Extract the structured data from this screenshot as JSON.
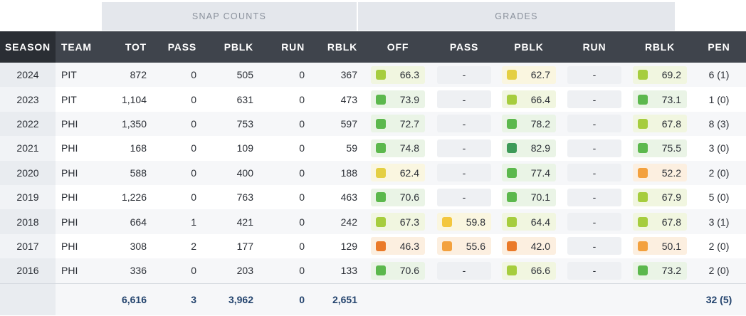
{
  "group_headers": {
    "snap_counts": "SNAP COUNTS",
    "grades": "GRADES"
  },
  "columns": {
    "season": "SEASON",
    "team": "TEAM",
    "tot": "TOT",
    "pass": "PASS",
    "pblk": "PBLK",
    "run": "RUN",
    "rblk": "RBLK",
    "off": "OFF",
    "g_pass": "PASS",
    "g_pblk": "PBLK",
    "g_run": "RUN",
    "g_rblk": "RBLK",
    "pen": "PEN"
  },
  "colors": {
    "dark_green": "#3d9a58",
    "green": "#5cb84d",
    "light_green": "#a6cd3e",
    "yellow": "#e4cf43",
    "gold": "#f3c73f",
    "orange": "#f3a13e",
    "dark_orange": "#ea7a29",
    "tint_green": "#eaf4e6",
    "tint_light_green": "#f1f6e0",
    "tint_yellow": "#faf6e0",
    "tint_orange": "#fcefe0"
  },
  "rows": [
    {
      "season": "2024",
      "team": "PIT",
      "tot": "872",
      "pass": "0",
      "pblk": "505",
      "run": "0",
      "rblk": "367",
      "off": {
        "value": "66.3",
        "color": "light_green"
      },
      "g_pass": null,
      "g_pblk": {
        "value": "62.7",
        "color": "yellow"
      },
      "g_run": null,
      "g_rblk": {
        "value": "69.2",
        "color": "light_green"
      },
      "pen": "6 (1)"
    },
    {
      "season": "2023",
      "team": "PIT",
      "tot": "1,104",
      "pass": "0",
      "pblk": "631",
      "run": "0",
      "rblk": "473",
      "off": {
        "value": "73.9",
        "color": "green"
      },
      "g_pass": null,
      "g_pblk": {
        "value": "66.4",
        "color": "light_green"
      },
      "g_run": null,
      "g_rblk": {
        "value": "73.1",
        "color": "green"
      },
      "pen": "1 (0)"
    },
    {
      "season": "2022",
      "team": "PHI",
      "tot": "1,350",
      "pass": "0",
      "pblk": "753",
      "run": "0",
      "rblk": "597",
      "off": {
        "value": "72.7",
        "color": "green"
      },
      "g_pass": null,
      "g_pblk": {
        "value": "78.2",
        "color": "green"
      },
      "g_run": null,
      "g_rblk": {
        "value": "67.8",
        "color": "light_green"
      },
      "pen": "8 (3)"
    },
    {
      "season": "2021",
      "team": "PHI",
      "tot": "168",
      "pass": "0",
      "pblk": "109",
      "run": "0",
      "rblk": "59",
      "off": {
        "value": "74.8",
        "color": "green"
      },
      "g_pass": null,
      "g_pblk": {
        "value": "82.9",
        "color": "dark_green"
      },
      "g_run": null,
      "g_rblk": {
        "value": "75.5",
        "color": "green"
      },
      "pen": "3 (0)"
    },
    {
      "season": "2020",
      "team": "PHI",
      "tot": "588",
      "pass": "0",
      "pblk": "400",
      "run": "0",
      "rblk": "188",
      "off": {
        "value": "62.4",
        "color": "yellow"
      },
      "g_pass": null,
      "g_pblk": {
        "value": "77.4",
        "color": "green"
      },
      "g_run": null,
      "g_rblk": {
        "value": "52.2",
        "color": "orange"
      },
      "pen": "2 (0)"
    },
    {
      "season": "2019",
      "team": "PHI",
      "tot": "1,226",
      "pass": "0",
      "pblk": "763",
      "run": "0",
      "rblk": "463",
      "off": {
        "value": "70.6",
        "color": "green"
      },
      "g_pass": null,
      "g_pblk": {
        "value": "70.1",
        "color": "green"
      },
      "g_run": null,
      "g_rblk": {
        "value": "67.9",
        "color": "light_green"
      },
      "pen": "5 (0)"
    },
    {
      "season": "2018",
      "team": "PHI",
      "tot": "664",
      "pass": "1",
      "pblk": "421",
      "run": "0",
      "rblk": "242",
      "off": {
        "value": "67.3",
        "color": "light_green"
      },
      "g_pass": {
        "value": "59.8",
        "color": "gold"
      },
      "g_pblk": {
        "value": "64.4",
        "color": "light_green"
      },
      "g_run": null,
      "g_rblk": {
        "value": "67.8",
        "color": "light_green"
      },
      "pen": "3 (1)"
    },
    {
      "season": "2017",
      "team": "PHI",
      "tot": "308",
      "pass": "2",
      "pblk": "177",
      "run": "0",
      "rblk": "129",
      "off": {
        "value": "46.3",
        "color": "dark_orange"
      },
      "g_pass": {
        "value": "55.6",
        "color": "orange"
      },
      "g_pblk": {
        "value": "42.0",
        "color": "dark_orange"
      },
      "g_run": null,
      "g_rblk": {
        "value": "50.1",
        "color": "orange"
      },
      "pen": "2 (0)"
    },
    {
      "season": "2016",
      "team": "PHI",
      "tot": "336",
      "pass": "0",
      "pblk": "203",
      "run": "0",
      "rblk": "133",
      "off": {
        "value": "70.6",
        "color": "green"
      },
      "g_pass": null,
      "g_pblk": {
        "value": "66.6",
        "color": "light_green"
      },
      "g_run": null,
      "g_rblk": {
        "value": "73.2",
        "color": "green"
      },
      "pen": "2 (0)"
    }
  ],
  "empty_grade": "-",
  "totals": {
    "tot": "6,616",
    "pass": "3",
    "pblk": "3,962",
    "run": "0",
    "rblk": "2,651",
    "pen": "32 (5)"
  }
}
